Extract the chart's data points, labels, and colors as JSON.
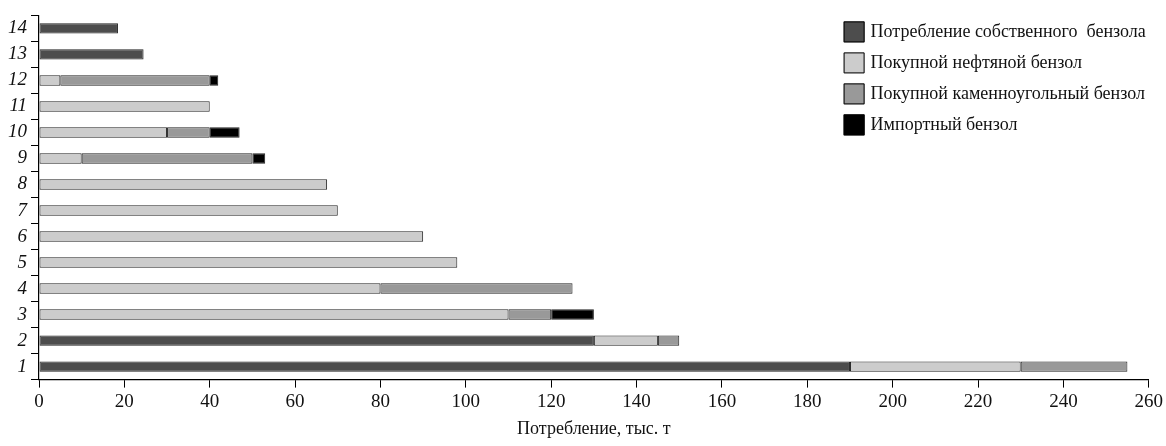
{
  "chart_data": {
    "type": "bar",
    "orientation": "horizontal",
    "stacked": true,
    "xlabel": "Потребление, тыс. т",
    "categories": [
      "14",
      "13",
      "12",
      "11",
      "10",
      "9",
      "8",
      "7",
      "6",
      "5",
      "4",
      "3",
      "2",
      "1"
    ],
    "series": [
      {
        "name": "Потребление собственного  бензола",
        "color": "#4d4d4d",
        "values": [
          18.5,
          24.5,
          null,
          null,
          null,
          null,
          null,
          null,
          null,
          null,
          null,
          null,
          130,
          190
        ]
      },
      {
        "name": "Покупной нефтяной бензол",
        "color": "#cccccc",
        "values": [
          null,
          null,
          5,
          40,
          30,
          10,
          67.5,
          70,
          90,
          98,
          80,
          110,
          15,
          40
        ]
      },
      {
        "name": "Покупной каменноугольный бензол",
        "color": "#999999",
        "values": [
          null,
          null,
          35,
          null,
          10,
          40,
          null,
          null,
          null,
          null,
          45,
          10,
          5,
          25
        ]
      },
      {
        "name": "Импортный бензол",
        "color": "#000000",
        "values": [
          null,
          null,
          2,
          null,
          7,
          3,
          null,
          null,
          null,
          null,
          null,
          10,
          null,
          null
        ]
      }
    ],
    "xlim": [
      0,
      260
    ],
    "xticks": [
      0,
      20,
      40,
      60,
      80,
      100,
      120,
      140,
      160,
      180,
      200,
      220,
      240,
      260
    ],
    "grid": false,
    "legend": "top right"
  }
}
